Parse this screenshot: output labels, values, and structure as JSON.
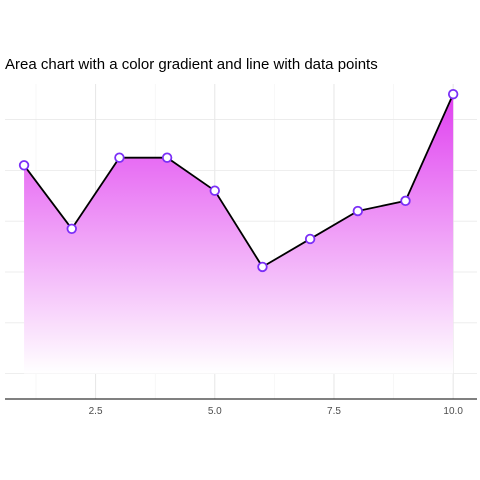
{
  "chart_data": {
    "type": "area",
    "title": "Area chart with a color gradient and line with data points",
    "xlabel": "",
    "ylabel": "",
    "x": [
      1,
      2,
      3,
      4,
      5,
      6,
      7,
      8,
      9,
      10
    ],
    "values": [
      0.72,
      0.47,
      0.75,
      0.75,
      0.62,
      0.32,
      0.43,
      0.54,
      0.58,
      1.0
    ],
    "xlim": [
      0.6,
      10.5
    ],
    "ylim": [
      -0.2,
      1.04
    ],
    "x_ticks": [
      2.5,
      5.0,
      7.5,
      10.0
    ],
    "x_tick_labels": [
      "2.5",
      "5.0",
      "7.5",
      "10.0"
    ],
    "y_gridlines": [
      -0.1,
      0.1,
      0.3,
      0.5,
      0.7,
      0.9
    ],
    "y_tick_labels_visible": false,
    "grid": true,
    "legend": "none",
    "colors": {
      "line": "#000000",
      "point_stroke": "#7b2ff7",
      "point_fill": "#ffffff",
      "gradient_top": "#e040f0",
      "gradient_bottom": "#ffffff"
    }
  }
}
